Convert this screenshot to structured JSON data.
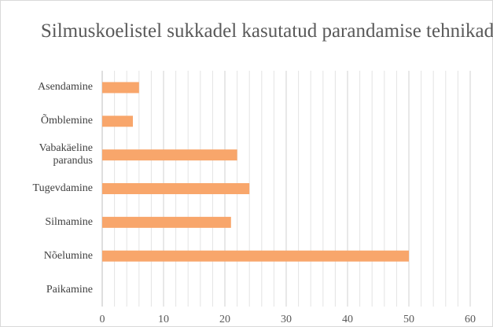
{
  "chart_data": {
    "type": "bar",
    "orientation": "horizontal",
    "title": "Silmuskoelistel sukkadel kasutatud parandamise tehnikad",
    "categories": [
      "Asendamine",
      "Õmblemine",
      "Vabakäeline parandus",
      "Tugevdamine",
      "Silmamine",
      "Nõelumine",
      "Paikamine"
    ],
    "values": [
      6,
      5,
      22,
      24,
      21,
      50,
      0
    ],
    "color": "#f8a66b",
    "xlim": [
      0,
      60
    ],
    "xticks": [
      0,
      10,
      20,
      30,
      40,
      50,
      60
    ],
    "xminorticks": [
      2,
      4,
      6,
      8,
      12,
      14,
      16,
      18,
      22,
      24,
      26,
      28,
      32,
      34,
      36,
      38,
      42,
      44,
      46,
      48,
      52,
      54,
      56,
      58
    ],
    "grid": true
  }
}
